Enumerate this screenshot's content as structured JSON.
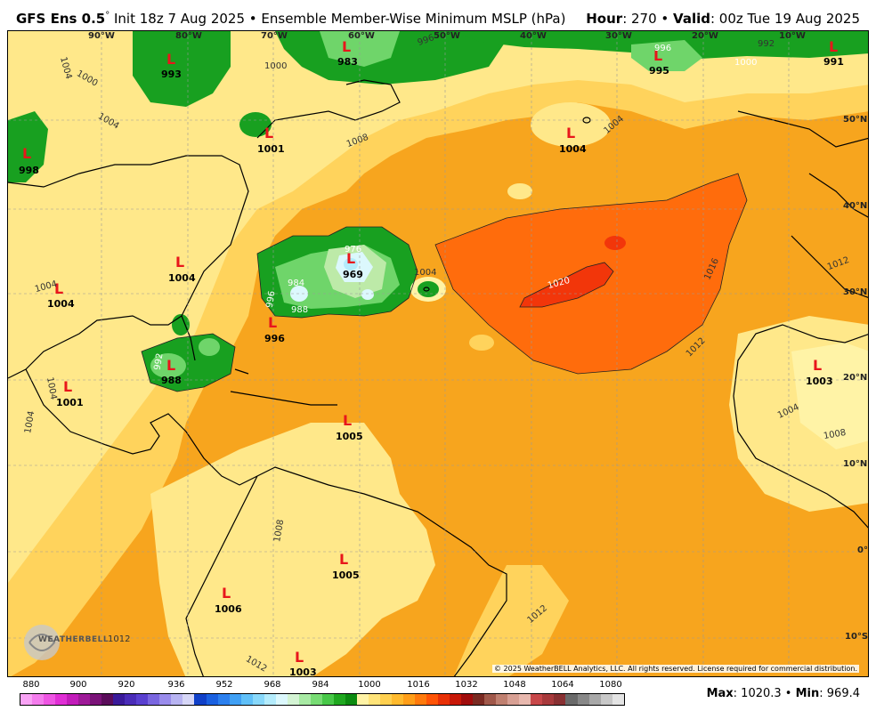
{
  "header": {
    "model": "GFS Ens 0.5",
    "degree": "°",
    "init": " Init 18z 7 Aug 2025 • Ensemble Member-Wise Minimum MSLP (hPa)",
    "hour_label": "Hour",
    "hour_value": ": 270 • ",
    "valid_label": "Valid",
    "valid_value": ": 00z Tue 19 Aug 2025"
  },
  "lon_labels": [
    "90°W",
    "80°W",
    "70°W",
    "60°W",
    "50°W",
    "40°W",
    "30°W",
    "20°W",
    "10°W"
  ],
  "lat_labels": [
    "50°N",
    "40°N",
    "30°N",
    "20°N",
    "10°N",
    "0°",
    "10°S"
  ],
  "lows": [
    {
      "value": "993"
    },
    {
      "value": "983"
    },
    {
      "value": "995"
    },
    {
      "value": "991"
    },
    {
      "value": "998"
    },
    {
      "value": "1001"
    },
    {
      "value": "1004"
    },
    {
      "value": "1004"
    },
    {
      "value": "1004"
    },
    {
      "value": "969"
    },
    {
      "value": "996"
    },
    {
      "value": "988"
    },
    {
      "value": "1001"
    },
    {
      "value": "1003"
    },
    {
      "value": "1005"
    },
    {
      "value": "1005"
    },
    {
      "value": "1006"
    },
    {
      "value": "1003"
    }
  ],
  "contour_labels": [
    "1004",
    "1000",
    "1004",
    "1000",
    "996",
    "992",
    "1000",
    "996",
    "1008",
    "1004",
    "1004",
    "1004",
    "1020",
    "1016",
    "1012",
    "1012",
    "1004",
    "1008",
    "1004",
    "1004",
    "1008",
    "1012",
    "1012",
    "1012",
    "996",
    "984",
    "988",
    "976",
    "992"
  ],
  "copyright": "© 2025 WeatherBELL Analytics, LLC. All rights reserved. License required for commercial distribution.",
  "logo_text": "WEATHERBELL",
  "colorbar": {
    "ticks": [
      "880",
      "900",
      "920",
      "936",
      "952",
      "968",
      "984",
      "1000",
      "1016",
      "1032",
      "1048",
      "1064",
      "1080"
    ],
    "colors": [
      "#f9a3f5",
      "#f47ced",
      "#ee55e3",
      "#e02fd5",
      "#c21cba",
      "#9e1a98",
      "#7a1278",
      "#5a0c5a",
      "#3a1a9a",
      "#4a2cb8",
      "#5a40d0",
      "#7a66e0",
      "#9a8cec",
      "#b8b4f2",
      "#d6d6f6",
      "#1040c8",
      "#1a60e0",
      "#2c80ee",
      "#40a0f4",
      "#60c0f8",
      "#88d8fa",
      "#b4ecfc",
      "#dcf8fd",
      "#d4f4d4",
      "#a8eaa4",
      "#78dc74",
      "#48c848",
      "#20a820",
      "#0c8a10",
      "#fff3a6",
      "#ffe47a",
      "#ffd050",
      "#ffba2e",
      "#ff9e18",
      "#ff7a0c",
      "#ff5406",
      "#e83006",
      "#c81808",
      "#a00c0c",
      "#7a2a22",
      "#a0584a",
      "#c08070",
      "#d8a094",
      "#e8b8ae",
      "#c8484a",
      "#a83a3c",
      "#883032",
      "#6a6a6a",
      "#888888",
      "#a8a8a8",
      "#c8c8c8",
      "#e4e4e4"
    ]
  },
  "stats": {
    "max_label": "Max",
    "max_value": ": 1020.3 • ",
    "min_label": "Min",
    "min_value": ": 969.4"
  }
}
